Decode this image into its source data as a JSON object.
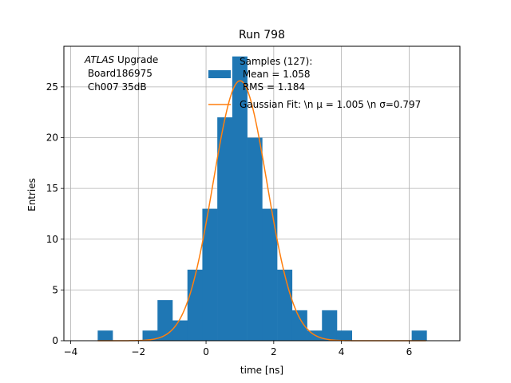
{
  "chart_data": {
    "type": "bar",
    "title": "Run 798",
    "xlabel": "time [ns]",
    "ylabel": "Entries",
    "xlim": [
      -4.2,
      7.5
    ],
    "ylim": [
      0,
      29
    ],
    "grid": true,
    "legend_placement": "top-right",
    "xticks": [
      -4,
      -2,
      0,
      2,
      4,
      6
    ],
    "yticks": [
      0,
      5,
      10,
      15,
      20,
      25
    ],
    "annotation": {
      "lines": [
        {
          "italic": "ATLAS",
          "text": " Upgrade"
        },
        {
          "italic": "",
          "text": " Board186975"
        },
        {
          "italic": "",
          "text": " Ch007 35dB"
        }
      ]
    },
    "histogram": {
      "name_lines": [
        "Samples (127):",
        " Mean = 1.058",
        " RMS = 1.184"
      ],
      "color": "#1f77b4",
      "bin_width": 0.4418,
      "bins": [
        {
          "x0": -3.201,
          "count": 1
        },
        {
          "x0": -2.759,
          "count": 0
        },
        {
          "x0": -2.317,
          "count": 0
        },
        {
          "x0": -1.876,
          "count": 1
        },
        {
          "x0": -1.434,
          "count": 4
        },
        {
          "x0": -0.992,
          "count": 2
        },
        {
          "x0": -0.55,
          "count": 7
        },
        {
          "x0": -0.109,
          "count": 13
        },
        {
          "x0": 0.333,
          "count": 22
        },
        {
          "x0": 0.775,
          "count": 28
        },
        {
          "x0": 1.217,
          "count": 20
        },
        {
          "x0": 1.658,
          "count": 13
        },
        {
          "x0": 2.1,
          "count": 7
        },
        {
          "x0": 2.542,
          "count": 3
        },
        {
          "x0": 2.984,
          "count": 1
        },
        {
          "x0": 3.425,
          "count": 3
        },
        {
          "x0": 3.867,
          "count": 1
        },
        {
          "x0": 4.309,
          "count": 0
        },
        {
          "x0": 4.751,
          "count": 0
        },
        {
          "x0": 5.192,
          "count": 0
        },
        {
          "x0": 5.634,
          "count": 0
        },
        {
          "x0": 6.076,
          "count": 1
        }
      ]
    },
    "fit": {
      "name": "Gaussian Fit: \\n μ = 1.005 \\n σ=0.797",
      "color": "#ff7f0e",
      "mu": 1.005,
      "sigma": 0.797,
      "amplitude": 25.6,
      "x_range": [
        -3.2,
        6.5
      ]
    }
  }
}
